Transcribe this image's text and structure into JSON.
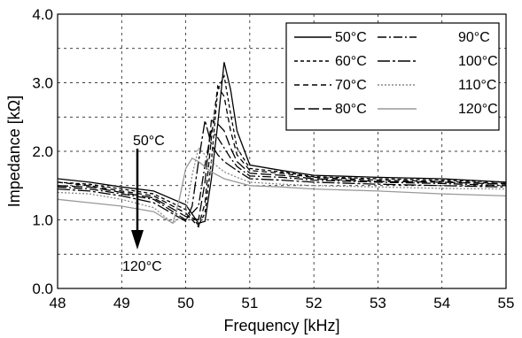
{
  "chart_data": {
    "type": "line",
    "xlabel": "Frequency [kHz]",
    "ylabel": "Impedance [kΩ]",
    "xlim": [
      48,
      55
    ],
    "ylim": [
      0,
      4
    ],
    "xticks": [
      "48",
      "49",
      "50",
      "51",
      "52",
      "53",
      "54",
      "55"
    ],
    "yticks": [
      "0.0",
      "1.0",
      "2.0",
      "3.0",
      "4.0"
    ],
    "grid": true,
    "legend_position": "top-right",
    "annotations": {
      "arrow_top": "50°C",
      "arrow_bottom": "120°C"
    },
    "series": [
      {
        "name": "50°C",
        "color": "#000000",
        "dash": "solid",
        "x": [
          48.0,
          48.5,
          49.0,
          49.5,
          50.0,
          50.2,
          50.3,
          50.4,
          50.5,
          50.6,
          50.7,
          50.8,
          51.0,
          51.5,
          52.0,
          53.0,
          54.0,
          55.0
        ],
        "y": [
          1.6,
          1.55,
          1.48,
          1.42,
          1.22,
          0.95,
          0.98,
          1.6,
          2.4,
          3.3,
          2.9,
          2.3,
          1.8,
          1.72,
          1.65,
          1.62,
          1.6,
          1.55
        ]
      },
      {
        "name": "60°C",
        "color": "#000000",
        "dash": "short-dash",
        "x": [
          48.0,
          48.5,
          49.0,
          49.5,
          50.0,
          50.2,
          50.3,
          50.4,
          50.5,
          50.6,
          50.7,
          50.8,
          51.0,
          51.5,
          52.0,
          53.0,
          54.0,
          55.0
        ],
        "y": [
          1.55,
          1.52,
          1.45,
          1.38,
          1.15,
          0.92,
          1.1,
          1.85,
          2.9,
          3.1,
          2.55,
          2.05,
          1.75,
          1.7,
          1.63,
          1.6,
          1.58,
          1.55
        ]
      },
      {
        "name": "70°C",
        "color": "#000000",
        "dash": "dash",
        "x": [
          48.0,
          48.5,
          49.0,
          49.5,
          50.0,
          50.2,
          50.3,
          50.4,
          50.5,
          50.6,
          50.7,
          50.8,
          51.0,
          51.5,
          52.0,
          53.0,
          54.0,
          55.0
        ],
        "y": [
          1.55,
          1.5,
          1.42,
          1.35,
          1.1,
          0.9,
          1.25,
          2.2,
          2.95,
          2.8,
          2.3,
          1.95,
          1.72,
          1.68,
          1.62,
          1.58,
          1.56,
          1.53
        ]
      },
      {
        "name": "80°C",
        "color": "#000000",
        "dash": "long-dash",
        "x": [
          48.0,
          48.5,
          49.0,
          49.5,
          50.0,
          50.2,
          50.3,
          50.4,
          50.5,
          50.6,
          50.7,
          50.8,
          51.0,
          51.5,
          52.0,
          53.0,
          54.0,
          55.0
        ],
        "y": [
          1.5,
          1.48,
          1.4,
          1.32,
          1.05,
          1.0,
          1.55,
          2.45,
          2.4,
          2.3,
          2.05,
          1.85,
          1.68,
          1.65,
          1.6,
          1.56,
          1.55,
          1.52
        ]
      },
      {
        "name": "90°C",
        "color": "#000000",
        "dash": "dash-dot",
        "x": [
          48.0,
          48.5,
          49.0,
          49.5,
          50.0,
          50.2,
          50.3,
          50.4,
          50.5,
          50.6,
          50.7,
          50.8,
          51.0,
          51.5,
          52.0,
          53.0,
          54.0,
          55.0
        ],
        "y": [
          1.48,
          1.45,
          1.38,
          1.3,
          1.0,
          1.2,
          1.8,
          2.3,
          2.2,
          2.05,
          1.9,
          1.78,
          1.64,
          1.62,
          1.58,
          1.55,
          1.53,
          1.5
        ]
      },
      {
        "name": "100°C",
        "color": "#000000",
        "dash": "long-dash-2",
        "x": [
          48.0,
          48.5,
          49.0,
          49.5,
          50.0,
          50.1,
          50.2,
          50.3,
          50.4,
          50.5,
          50.6,
          50.8,
          51.0,
          51.5,
          52.0,
          53.0,
          54.0,
          55.0
        ],
        "y": [
          1.45,
          1.42,
          1.35,
          1.25,
          0.98,
          1.2,
          1.85,
          2.45,
          2.1,
          1.95,
          1.85,
          1.72,
          1.6,
          1.58,
          1.55,
          1.52,
          1.5,
          1.48
        ]
      },
      {
        "name": "110°C",
        "color": "#888888",
        "dash": "fine-dot",
        "x": [
          48.0,
          48.5,
          49.0,
          49.5,
          49.8,
          50.0,
          50.1,
          50.2,
          50.3,
          50.4,
          50.6,
          50.8,
          51.0,
          51.5,
          52.0,
          53.0,
          54.0,
          55.0
        ],
        "y": [
          1.4,
          1.38,
          1.3,
          1.18,
          0.95,
          1.1,
          1.65,
          2.05,
          1.95,
          1.85,
          1.7,
          1.62,
          1.55,
          1.52,
          1.5,
          1.48,
          1.46,
          1.45
        ]
      },
      {
        "name": "120°C",
        "color": "#999999",
        "dash": "solid",
        "x": [
          48.0,
          48.5,
          49.0,
          49.5,
          49.8,
          49.9,
          50.0,
          50.1,
          50.2,
          50.4,
          50.6,
          50.8,
          51.0,
          51.5,
          52.0,
          53.0,
          54.0,
          55.0
        ],
        "y": [
          1.3,
          1.25,
          1.2,
          1.12,
          0.95,
          1.3,
          1.75,
          1.9,
          1.85,
          1.7,
          1.6,
          1.55,
          1.5,
          1.48,
          1.45,
          1.42,
          1.38,
          1.35
        ]
      }
    ]
  }
}
